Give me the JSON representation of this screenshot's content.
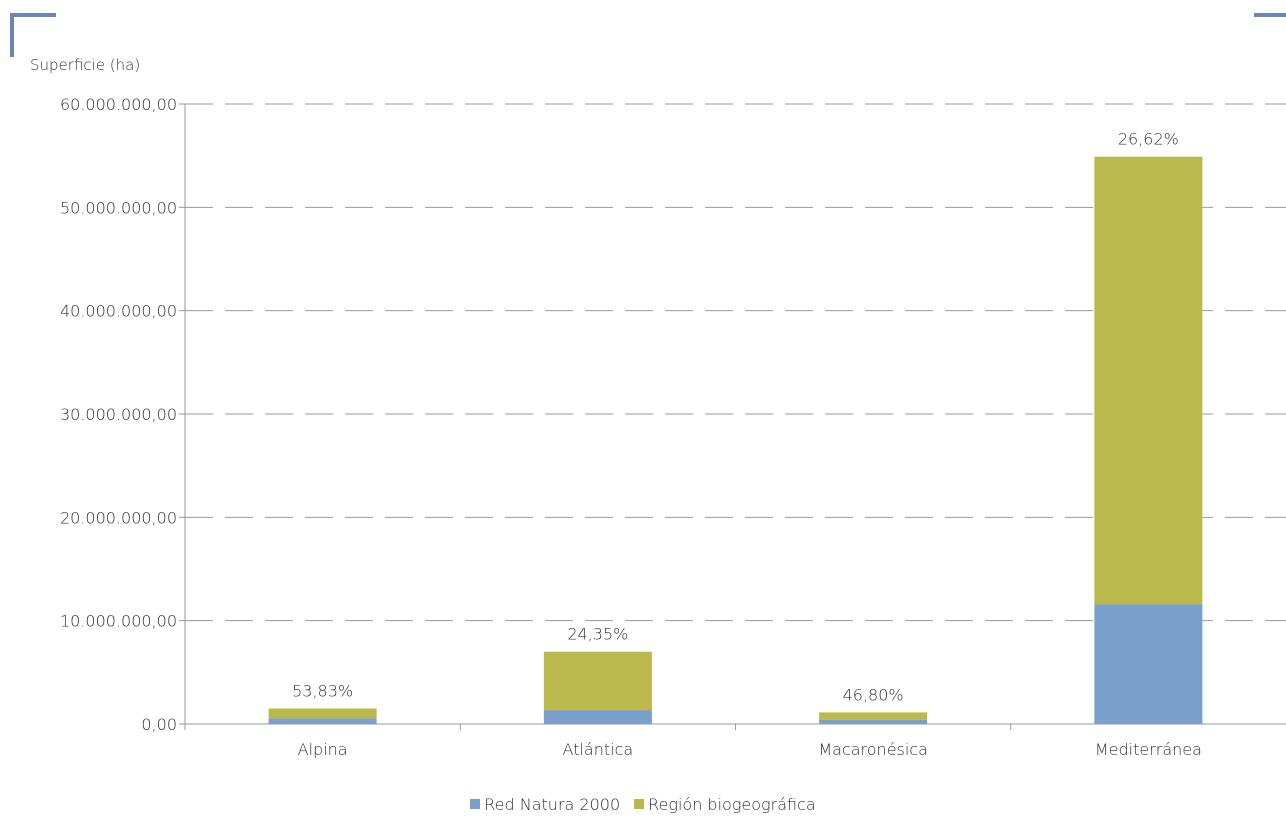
{
  "colors": {
    "red_natura": "#7b9fcb",
    "region": "#bcb94c",
    "accent": "#6a86b4",
    "axis": "#999999",
    "grid": "#9a9a9a"
  },
  "chart_data": {
    "type": "bar",
    "stacked": true,
    "title": "",
    "xlabel": "",
    "ylabel": "Superficie (ha)",
    "ylim": [
      0,
      60000000
    ],
    "yticks": [
      0,
      10000000,
      20000000,
      30000000,
      40000000,
      50000000,
      60000000
    ],
    "ytick_labels": [
      "0,00",
      "10.000.000,00",
      "20.000.000,00",
      "30.000.000,00",
      "40.000.000,00",
      "50.000.000,00",
      "60.000.000,00"
    ],
    "grid": true,
    "legend_position": "bottom",
    "categories": [
      "Alpina",
      "Atlántica",
      "Macaronésica",
      "Mediterránea"
    ],
    "series": [
      {
        "name": "Red Natura 2000",
        "values": [
          550000,
          1350000,
          420000,
          11600000
        ]
      },
      {
        "name": "Región biogeográfica",
        "values": [
          950000,
          5650000,
          700000,
          43300000
        ]
      }
    ],
    "data_labels": [
      "53,83%",
      "24,35%",
      "46,80%",
      "26,62%"
    ]
  }
}
